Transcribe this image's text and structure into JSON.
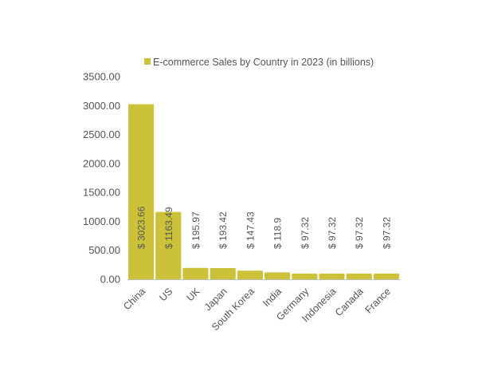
{
  "chart_data": {
    "type": "bar",
    "categories": [
      "China",
      "US",
      "UK",
      "Japan",
      "South Korea",
      "India",
      "Germany",
      "Indonesia",
      "Canada",
      "France"
    ],
    "series": [
      {
        "name": "E-commerce Sales by Country in 2023 (in billions)",
        "values": [
          3023.66,
          1163.49,
          195.97,
          193.42,
          147.43,
          118.9,
          97.32,
          97.32,
          97.32,
          97.32
        ],
        "data_labels": [
          "$ 3023.66",
          "$ 1163.49",
          "$ 195.97",
          "$ 193.42",
          "$ 147.43",
          "$ 118.9",
          "$ 97.32",
          "$ 97.32",
          "$ 97.32",
          "$ 97.32"
        ]
      }
    ],
    "y_ticks": [
      "0.00",
      "500.00",
      "1000.00",
      "1500.00",
      "2000.00",
      "2500.00",
      "3000.00",
      "3500.00"
    ],
    "ylim": [
      0,
      3500
    ],
    "grid": false,
    "legend_position": "top",
    "colors": {
      "bar": "#CBC23A",
      "text": "#555555",
      "axis": "#BBBBBB"
    }
  }
}
